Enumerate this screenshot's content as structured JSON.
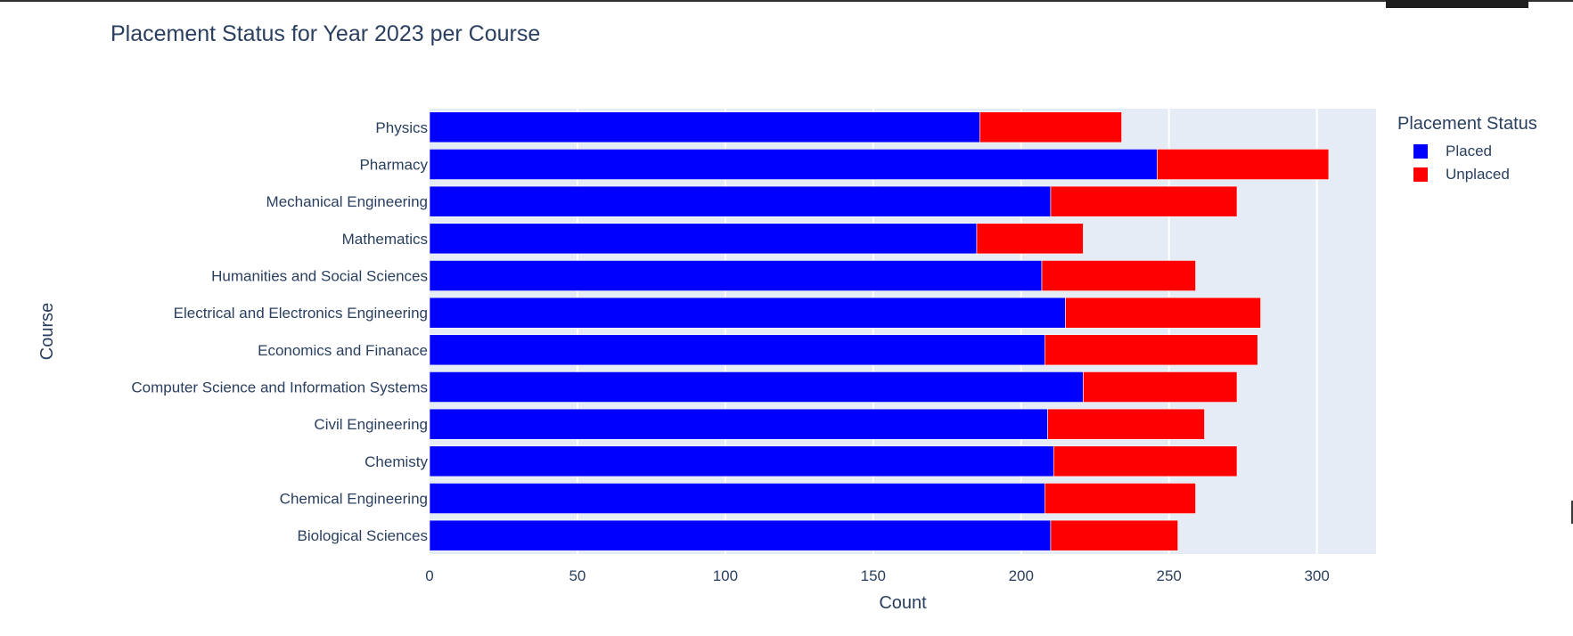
{
  "chart_data": {
    "type": "bar",
    "orientation": "horizontal",
    "barmode": "stack",
    "title": "Placement Status for Year 2023 per Course",
    "xlabel": "Count",
    "ylabel": "Course",
    "xlim": [
      0,
      320
    ],
    "xticks": [
      0,
      50,
      100,
      150,
      200,
      250,
      300
    ],
    "grid": true,
    "legend_position": "top-right",
    "legend_title": "Placement Status",
    "categories": [
      "Biological Sciences",
      "Chemical Engineering",
      "Chemisty",
      "Civil Engineering",
      "Computer Science and Information Systems",
      "Economics and Finanace",
      "Electrical and Electronics Engineering",
      "Humanities and Social Sciences",
      "Mathematics",
      "Mechanical Engineering",
      "Pharmacy",
      "Physics"
    ],
    "series": [
      {
        "name": "Placed",
        "color": "#0000ff",
        "values": [
          210,
          208,
          211,
          209,
          221,
          208,
          215,
          207,
          185,
          210,
          246,
          186
        ]
      },
      {
        "name": "Unplaced",
        "color": "#ff0000",
        "values": [
          43,
          51,
          62,
          53,
          52,
          72,
          66,
          52,
          36,
          63,
          58,
          48
        ]
      }
    ]
  }
}
